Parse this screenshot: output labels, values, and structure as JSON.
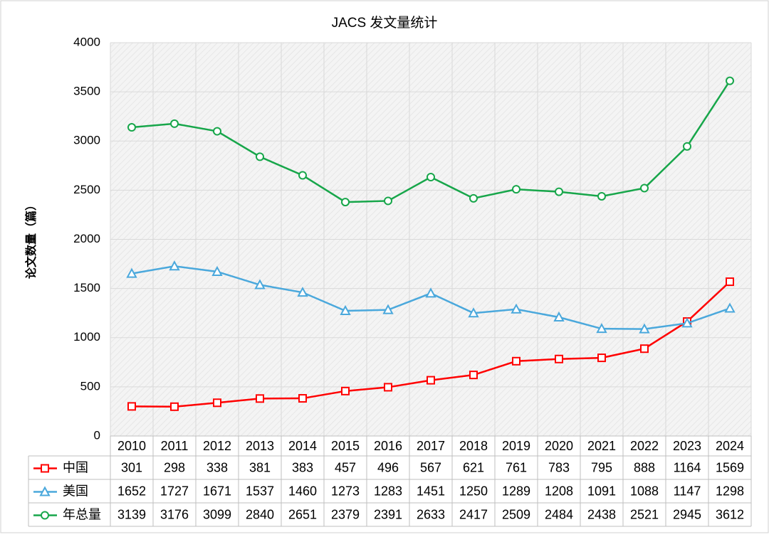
{
  "chart_data": {
    "type": "line",
    "title": "JACS 发文量统计",
    "y_label": "论文数量（篇）",
    "categories": [
      "2010",
      "2011",
      "2012",
      "2013",
      "2014",
      "2015",
      "2016",
      "2017",
      "2018",
      "2019",
      "2020",
      "2021",
      "2022",
      "2023",
      "2024"
    ],
    "series": [
      {
        "name": "中国",
        "color": "#ff0000",
        "marker": "square",
        "values": [
          301,
          298,
          338,
          381,
          383,
          457,
          496,
          567,
          621,
          761,
          783,
          795,
          888,
          1164,
          1569
        ]
      },
      {
        "name": "美国",
        "color": "#4aa8dc",
        "marker": "triangle",
        "values": [
          1652,
          1727,
          1671,
          1537,
          1460,
          1273,
          1283,
          1451,
          1250,
          1289,
          1208,
          1091,
          1088,
          1147,
          1298
        ]
      },
      {
        "name": "年总量",
        "color": "#17a64a",
        "marker": "circle",
        "values": [
          3139,
          3176,
          3099,
          2840,
          2651,
          2379,
          2391,
          2633,
          2417,
          2509,
          2484,
          2438,
          2521,
          2945,
          3612
        ]
      }
    ],
    "ylim": [
      0,
      4000
    ],
    "yticks": [
      0,
      500,
      1000,
      1500,
      2000,
      2500,
      3000,
      3500,
      4000
    ],
    "grid": true
  }
}
